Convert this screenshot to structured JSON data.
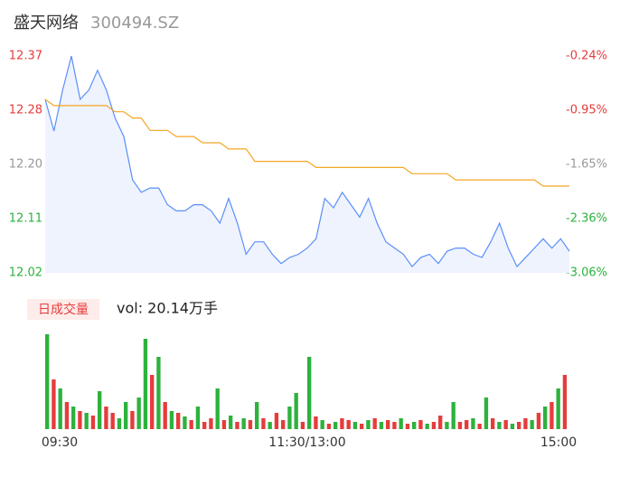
{
  "header": {
    "title": "盛天网络",
    "code": "300494.SZ"
  },
  "chart_data": [
    {
      "type": "line",
      "xlim": [
        0,
        240
      ],
      "ylim": [
        12.02,
        12.37
      ],
      "yticks": [
        12.37,
        {
          "value": 12.2825,
          "label": "12.28"
        },
        {
          "value": 12.195,
          "label": "12.20"
        },
        {
          "value": 12.1075,
          "label": "12.11"
        },
        12.02
      ],
      "ytick_colors": [
        "#e63c3c",
        "#e63c3c",
        "#999999",
        "#2db23d",
        "#2db23d"
      ],
      "y2lim": [
        -3.06,
        -0.24
      ],
      "y2ticks": [
        {
          "value": -0.24,
          "label": "-0.24%"
        },
        {
          "value": -0.945,
          "label": "-0.95%"
        },
        {
          "value": -1.65,
          "label": "-1.65%"
        },
        {
          "value": -2.355,
          "label": "-2.36%"
        },
        {
          "value": -3.06,
          "label": "-3.06%"
        }
      ],
      "y2tick_colors": [
        "#e63c3c",
        "#e63c3c",
        "#999999",
        "#2db23d",
        "#2db23d"
      ],
      "area_color": "#eef3fd",
      "x": [
        0,
        4,
        8,
        12,
        16,
        20,
        24,
        28,
        32,
        36,
        40,
        44,
        48,
        52,
        56,
        60,
        64,
        68,
        72,
        76,
        80,
        84,
        88,
        92,
        96,
        100,
        104,
        108,
        112,
        116,
        120,
        124,
        128,
        132,
        136,
        140,
        144,
        148,
        152,
        156,
        160,
        164,
        168,
        172,
        176,
        180,
        184,
        188,
        192,
        196,
        200,
        204,
        208,
        212,
        216,
        220,
        224,
        228,
        232,
        236,
        240
      ],
      "series": [
        {
          "color": "#5b8ff9",
          "values": [
            12.3,
            12.249,
            12.315,
            12.37,
            12.3,
            12.315,
            12.347,
            12.315,
            12.27,
            12.24,
            12.17,
            12.15,
            12.157,
            12.157,
            12.13,
            12.12,
            12.12,
            12.13,
            12.13,
            12.12,
            12.1,
            12.14,
            12.1,
            12.05,
            12.07,
            12.07,
            12.05,
            12.035,
            12.045,
            12.05,
            12.06,
            12.075,
            12.14,
            12.125,
            12.15,
            12.13,
            12.11,
            12.14,
            12.1,
            12.07,
            12.06,
            12.05,
            12.03,
            12.045,
            12.05,
            12.035,
            12.055,
            12.06,
            12.06,
            12.05,
            12.045,
            12.07,
            12.1,
            12.06,
            12.03,
            12.045,
            12.06,
            12.075,
            12.06,
            12.075,
            12.055
          ]
        },
        {
          "color": "#f5a623",
          "values": [
            12.3,
            12.29,
            12.29,
            12.29,
            12.29,
            12.29,
            12.29,
            12.29,
            12.28,
            12.28,
            12.27,
            12.27,
            12.25,
            12.25,
            12.25,
            12.24,
            12.24,
            12.24,
            12.23,
            12.23,
            12.23,
            12.22,
            12.22,
            12.22,
            12.2,
            12.2,
            12.2,
            12.2,
            12.2,
            12.2,
            12.2,
            12.19,
            12.19,
            12.19,
            12.19,
            12.19,
            12.19,
            12.19,
            12.19,
            12.19,
            12.19,
            12.19,
            12.18,
            12.18,
            12.18,
            12.18,
            12.18,
            12.17,
            12.17,
            12.17,
            12.17,
            12.17,
            12.17,
            12.17,
            12.17,
            12.17,
            12.17,
            12.16,
            12.16,
            12.16,
            12.16
          ]
        }
      ]
    },
    {
      "type": "bar",
      "legend": "日成交量",
      "volume_text": "vol: 20.14万手",
      "xlim": [
        0,
        240
      ],
      "ylim": [
        0,
        110
      ],
      "xticks": [
        {
          "value": 0,
          "label": "09:30"
        },
        {
          "value": 120,
          "label": "11:30/13:00"
        },
        {
          "value": 240,
          "label": "15:00"
        }
      ],
      "up_color": "#e63c3c",
      "down_color": "#2db23d",
      "x": [
        0,
        3,
        6,
        9,
        12,
        15,
        18,
        21,
        24,
        27,
        30,
        33,
        36,
        39,
        42,
        45,
        48,
        51,
        54,
        57,
        60,
        63,
        66,
        69,
        72,
        75,
        78,
        81,
        84,
        87,
        90,
        93,
        96,
        99,
        102,
        105,
        108,
        111,
        114,
        117,
        120,
        123,
        126,
        129,
        132,
        135,
        138,
        141,
        144,
        147,
        150,
        153,
        156,
        159,
        162,
        165,
        168,
        171,
        174,
        177,
        180,
        183,
        186,
        189,
        192,
        195,
        198,
        201,
        204,
        207,
        210,
        213,
        216,
        219,
        222,
        225,
        228,
        231,
        234,
        237
      ],
      "values": [
        105,
        55,
        45,
        30,
        25,
        20,
        18,
        15,
        42,
        25,
        18,
        12,
        30,
        20,
        35,
        100,
        60,
        80,
        30,
        20,
        18,
        14,
        10,
        25,
        8,
        12,
        45,
        10,
        15,
        8,
        12,
        10,
        30,
        12,
        8,
        18,
        10,
        25,
        40,
        8,
        80,
        14,
        10,
        6,
        8,
        12,
        10,
        8,
        6,
        10,
        12,
        8,
        10,
        8,
        12,
        6,
        8,
        10,
        6,
        8,
        15,
        8,
        30,
        8,
        10,
        12,
        6,
        35,
        12,
        8,
        10,
        6,
        8,
        12,
        10,
        18,
        25,
        30,
        45,
        60
      ],
      "rising": [
        false,
        true,
        false,
        true,
        false,
        true,
        false,
        true,
        false,
        true,
        true,
        false,
        false,
        true,
        false,
        false,
        true,
        false,
        true,
        false,
        true,
        false,
        true,
        false,
        true,
        true,
        false,
        true,
        false,
        true,
        false,
        true,
        false,
        true,
        false,
        true,
        true,
        false,
        false,
        true,
        false,
        true,
        false,
        true,
        false,
        true,
        true,
        false,
        true,
        false,
        true,
        false,
        true,
        true,
        false,
        true,
        false,
        true,
        false,
        true,
        true,
        false,
        false,
        true,
        true,
        false,
        true,
        false,
        true,
        false,
        true,
        false,
        true,
        true,
        false,
        true,
        false,
        true,
        false,
        true
      ]
    }
  ]
}
